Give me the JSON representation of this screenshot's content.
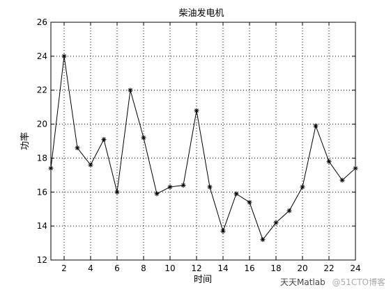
{
  "chart_data": {
    "type": "line",
    "title": "柴油发电机",
    "xlabel": "时间",
    "ylabel": "功率",
    "xlim": [
      1,
      24
    ],
    "ylim": [
      12,
      26
    ],
    "xticks": [
      2,
      4,
      6,
      8,
      10,
      12,
      14,
      16,
      18,
      20,
      22,
      24
    ],
    "yticks": [
      12,
      14,
      16,
      18,
      20,
      22,
      24,
      26
    ],
    "grid": true,
    "marker": "asterisk",
    "line_color": "#000000",
    "series": [
      {
        "x": [
          1,
          2,
          3,
          4,
          5,
          6,
          7,
          8,
          9,
          10,
          11,
          12,
          13,
          14,
          15,
          16,
          17,
          18,
          19,
          20,
          21,
          22,
          23,
          24
        ],
        "values": [
          17.4,
          24.0,
          18.6,
          17.6,
          19.1,
          16.0,
          22.0,
          19.2,
          15.9,
          16.3,
          16.4,
          20.8,
          16.3,
          13.7,
          15.9,
          15.4,
          13.2,
          14.2,
          14.9,
          16.3,
          19.9,
          17.8,
          16.7,
          17.4
        ]
      }
    ]
  },
  "watermark": {
    "line1": "天天Matlab",
    "line2": "@51CTO博客"
  }
}
